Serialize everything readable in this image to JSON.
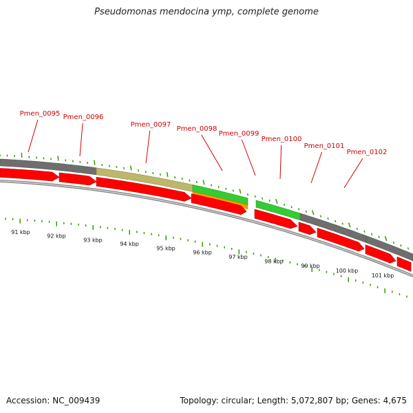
{
  "header": {
    "title": "Pseudomonas mendocina ymp, complete genome"
  },
  "footer": {
    "accession": "Accession: NC_009439",
    "summary": "Topology: circular; Length: 5,072,807 bp; Genes: 4,675"
  },
  "colors": {
    "gene_red": "#ff0000",
    "track_gray": "#6e6e6e",
    "olive": "#bdb76b",
    "green": "#33cc33",
    "orange": "#ff9900",
    "tick_green": "#339900",
    "label_red": "#cc0000"
  },
  "genome_map": {
    "kbp_labels": [
      "91 kbp",
      "92 kbp",
      "93 kbp",
      "94 kbp",
      "95 kbp",
      "96 kbp",
      "97 kbp",
      "98 kbp",
      "99 kbp",
      "100 kbp",
      "101 kbp"
    ],
    "genes": [
      "Pmen_0095",
      "Pmen_0096",
      "Pmen_0097",
      "Pmen_0098",
      "Pmen_0099",
      "Pmen_0100",
      "Pmen_0101",
      "Pmen_0102"
    ]
  }
}
